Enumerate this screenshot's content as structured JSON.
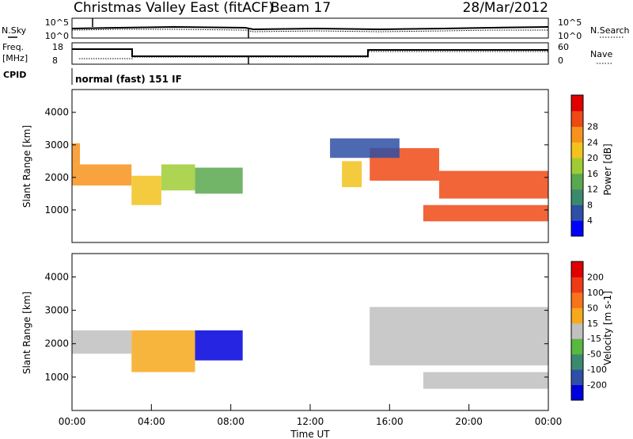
{
  "header": {
    "title": "Christmas Valley East (fitACF)",
    "beam": "Beam 17",
    "date": "28/Mar/2012"
  },
  "top_panels": {
    "nsky_label": "N.Sky",
    "nsky_ticks": [
      "10^5",
      "10^0"
    ],
    "nsearch_label": "N.Search",
    "nsearch_ticks": [
      "10^5",
      "10^0"
    ],
    "freq_label": "Freq.",
    "freq_unit": "[MHz]",
    "freq_ticks": [
      "18",
      "8"
    ],
    "nave_label": "Nave",
    "nave_ticks": [
      "60",
      "0"
    ],
    "cpid_label": "CPID",
    "cpid_text": "normal (fast) 151 IF"
  },
  "chart_data": [
    {
      "type": "heatmap",
      "name": "power-panel",
      "ylabel": "Slant Range [km]",
      "ylim": [
        0,
        4700
      ],
      "y_ticks": [
        "1000",
        "2000",
        "3000",
        "4000"
      ],
      "colorbar_label": "Power [dB]",
      "colorbar_ticks": [
        "4",
        "8",
        "12",
        "16",
        "20",
        "24",
        "28"
      ],
      "colorbar_colors": [
        "#0000ff",
        "#2e4fa5",
        "#3c8a6e",
        "#59a84f",
        "#9fcc35",
        "#f2c21d",
        "#f7931c",
        "#ee4a16",
        "#e00000"
      ],
      "bands": [
        {
          "x0": 0.0,
          "x1": 3.0,
          "y0": 1750,
          "y1": 2400,
          "level": 6
        },
        {
          "x0": 0.0,
          "x1": 0.4,
          "y0": 2400,
          "y1": 3050,
          "level": 6
        },
        {
          "x0": 3.0,
          "x1": 4.5,
          "y0": 1150,
          "y1": 2050,
          "level": 5
        },
        {
          "x0": 4.5,
          "x1": 6.2,
          "y0": 1600,
          "y1": 2400,
          "level": 4
        },
        {
          "x0": 6.2,
          "x1": 8.6,
          "y0": 1500,
          "y1": 2300,
          "level": 3
        },
        {
          "x0": 13.6,
          "x1": 14.6,
          "y0": 1700,
          "y1": 2500,
          "level": 5
        },
        {
          "x0": 15.0,
          "x1": 18.5,
          "y0": 1900,
          "y1": 2900,
          "level": 7
        },
        {
          "x0": 18.5,
          "x1": 24.0,
          "y0": 1350,
          "y1": 2200,
          "level": 7
        },
        {
          "x0": 17.7,
          "x1": 24.0,
          "y0": 650,
          "y1": 1150,
          "level": 7
        },
        {
          "x0": 13.0,
          "x1": 16.5,
          "y0": 2600,
          "y1": 3200,
          "level": 1
        }
      ]
    },
    {
      "type": "heatmap",
      "name": "velocity-panel",
      "ylabel": "Slant Range [km]",
      "xlabel": "Time UT",
      "ylim": [
        0,
        4700
      ],
      "y_ticks": [
        "1000",
        "2000",
        "3000",
        "4000"
      ],
      "x_ticks": [
        "00:00",
        "04:00",
        "08:00",
        "12:00",
        "16:00",
        "20:00",
        "00:00"
      ],
      "colorbar_label": "Velocity [m s-1]",
      "colorbar_ticks": [
        "200",
        "100",
        "50",
        "15",
        "-15",
        "-50",
        "-100",
        "-200"
      ],
      "colorbar_colors": [
        "#0000dd",
        "#2e4fa5",
        "#3c8a6e",
        "#59b83f",
        "#c0c0c0",
        "#f7a81c",
        "#f7731c",
        "#ee3a16",
        "#e00000"
      ],
      "bands": [
        {
          "x0": 0.0,
          "x1": 3.0,
          "y0": 1700,
          "y1": 2400,
          "level": 4
        },
        {
          "x0": 3.0,
          "x1": 6.2,
          "y0": 1150,
          "y1": 2400,
          "level": 5
        },
        {
          "x0": 6.2,
          "x1": 8.6,
          "y0": 1500,
          "y1": 2400,
          "level": 0
        },
        {
          "x0": 15.0,
          "x1": 24.0,
          "y0": 1350,
          "y1": 3100,
          "level": 4
        },
        {
          "x0": 17.7,
          "x1": 24.0,
          "y0": 650,
          "y1": 1150,
          "level": 4
        }
      ]
    }
  ]
}
